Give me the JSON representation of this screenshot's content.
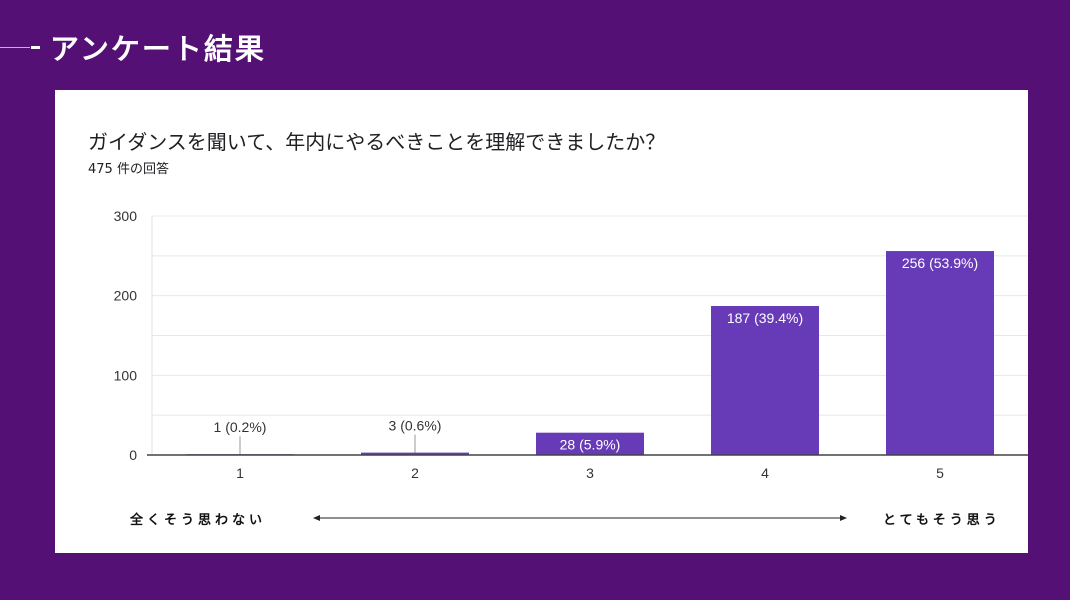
{
  "header": {
    "title": "アンケート結果"
  },
  "colors": {
    "background": "#541074",
    "bar": "#673ab7"
  },
  "chart_data": {
    "type": "bar",
    "title": "ガイダンスを聞いて、年内にやるべきことを理解できましたか？",
    "subtitle": "475 件の回答",
    "categories": [
      "1",
      "2",
      "3",
      "4",
      "5"
    ],
    "values": [
      1,
      3,
      28,
      187,
      256
    ],
    "data_labels": [
      "1 (0.2%)",
      "3 (0.6%)",
      "28 (5.9%)",
      "187 (39.4%)",
      "256 (53.9%)"
    ],
    "yticks": [
      "0",
      "100",
      "200",
      "300"
    ],
    "ylim": [
      0,
      300
    ],
    "grid": true,
    "scale_left": "全くそう思わない",
    "scale_right": "とてもそう思う"
  }
}
